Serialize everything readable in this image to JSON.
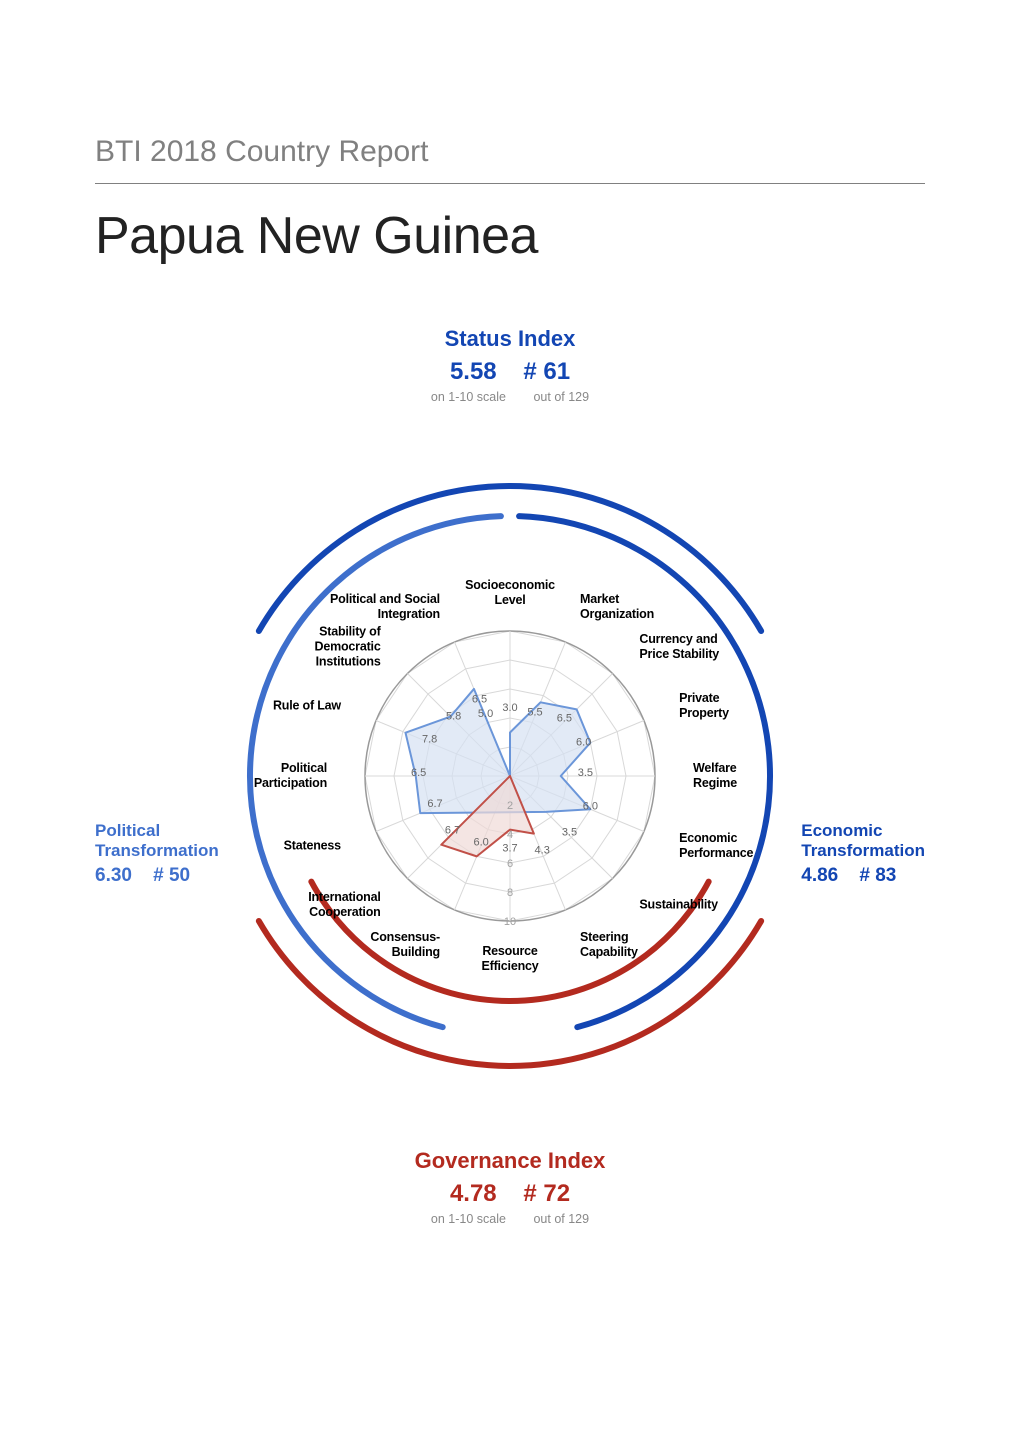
{
  "header": {
    "subtitle": "BTI 2018 Country Report",
    "title": "Papua New Guinea"
  },
  "status_index": {
    "title": "Status Index",
    "color": "#1346B3",
    "score": "5.58",
    "rank": "# 61",
    "scale_label": "on 1-10 scale",
    "total_label": "out of 129"
  },
  "governance_index": {
    "title": "Governance Index",
    "color": "#B32A1F",
    "score": "4.78",
    "rank": "# 72",
    "scale_label": "on 1-10 scale",
    "total_label": "out of 129"
  },
  "political_transformation": {
    "title": "Political\nTransformation",
    "color": "#3E6FCC",
    "score": "6.30",
    "rank": "# 50"
  },
  "economic_transformation": {
    "title": "Economic\nTransformation",
    "color": "#1346B3",
    "score": "4.86",
    "rank": "# 83"
  },
  "radar": {
    "background": "#ffffff",
    "grid_color": "#d8d8d8",
    "ring_color": "#999",
    "ring_labels": [
      "2",
      "4",
      "6",
      "8",
      "10"
    ],
    "ring_label_color": "#a0a0a0",
    "ring_label_fontsize": 11,
    "spoke_label_fontsize": 12.5,
    "max_value": 10,
    "radius": 145,
    "spokes": [
      {
        "label": "Socioeconomic\nLevel"
      },
      {
        "label": "Market\nOrganization"
      },
      {
        "label": "Currency and\nPrice Stability"
      },
      {
        "label": "Private\nProperty"
      },
      {
        "label": "Welfare\nRegime"
      },
      {
        "label": "Economic\nPerformance"
      },
      {
        "label": "Sustainability"
      },
      {
        "label": "Steering\nCapability"
      },
      {
        "label": "Resource\nEfficiency"
      },
      {
        "label": "Consensus-\nBuilding"
      },
      {
        "label": "International\nCooperation"
      },
      {
        "label": "Stateness"
      },
      {
        "label": "Political\nParticipation"
      },
      {
        "label": "Rule of Law"
      },
      {
        "label": "Stability of\nDemocratic\nInstitutions"
      },
      {
        "label": "Political and Social\nIntegration"
      }
    ],
    "political_series": {
      "color": "#6B96D9",
      "fill": "#D5E1F2",
      "fill_opacity": 0.7,
      "line_width": 2,
      "values": [
        3.0,
        5.5,
        6.5,
        6.0,
        3.5,
        6.0,
        3.5,
        null,
        null,
        null,
        null,
        6.7,
        6.5,
        7.8,
        5.8,
        6.5
      ]
    },
    "governance_series": {
      "color": "#C15048",
      "fill": "#F0DAD7",
      "fill_opacity": 0.7,
      "line_width": 2,
      "values": [
        null,
        null,
        null,
        null,
        null,
        null,
        null,
        4.3,
        3.7,
        6.0,
        6.7,
        null,
        null,
        null,
        null,
        null
      ]
    },
    "score_labels": [
      {
        "v": "3.0",
        "spoke": 0,
        "r": 0.45
      },
      {
        "v": "5.5",
        "spoke": 1,
        "r": 0.45
      },
      {
        "v": "6.5",
        "spoke": 2,
        "r": 0.53
      },
      {
        "v": "6.0",
        "spoke": 3,
        "r": 0.55
      },
      {
        "v": "3.5",
        "spoke": 4,
        "r": 0.52
      },
      {
        "v": "6.0",
        "spoke": 5,
        "r": 0.6
      },
      {
        "v": "3.5",
        "spoke": 6,
        "r": 0.58
      },
      {
        "v": "4.3",
        "spoke": 7,
        "r": 0.58
      },
      {
        "v": "3.7",
        "spoke": 8,
        "r": 0.52
      },
      {
        "v": "6.0",
        "spoke": 9,
        "r": 0.52
      },
      {
        "v": "6.7",
        "spoke": 10,
        "r": 0.56
      },
      {
        "v": "6.7",
        "spoke": 11,
        "r": 0.56
      },
      {
        "v": "6.5",
        "spoke": 12,
        "r": 0.63
      },
      {
        "v": "7.8",
        "spoke": 13,
        "r": 0.6
      },
      {
        "v": "5.8",
        "spoke": 14,
        "r": 0.55
      },
      {
        "v": "6.5",
        "spoke": 15,
        "r": 0.55
      },
      {
        "v": "5.0",
        "spoke": 15,
        "r": 0.44
      }
    ]
  },
  "arcs": {
    "outer_status": {
      "color": "#1346B3",
      "width": 6,
      "r": 290,
      "start_deg": -60,
      "end_deg": 60
    },
    "outer_gov": {
      "color": "#B32A1F",
      "width": 6,
      "r": 290,
      "start_deg": 120,
      "end_deg": 240
    },
    "inner_political": {
      "color": "#3E6FCC",
      "width": 6,
      "r": 260,
      "start_deg": 195,
      "end_deg": 358
    },
    "inner_economic": {
      "color": "#1346B3",
      "width": 6,
      "r": 260,
      "start_deg": 2,
      "end_deg": 165
    },
    "inner_gov": {
      "color": "#B32A1F",
      "width": 6,
      "r": 225,
      "start_deg": 118,
      "end_deg": 242
    }
  }
}
